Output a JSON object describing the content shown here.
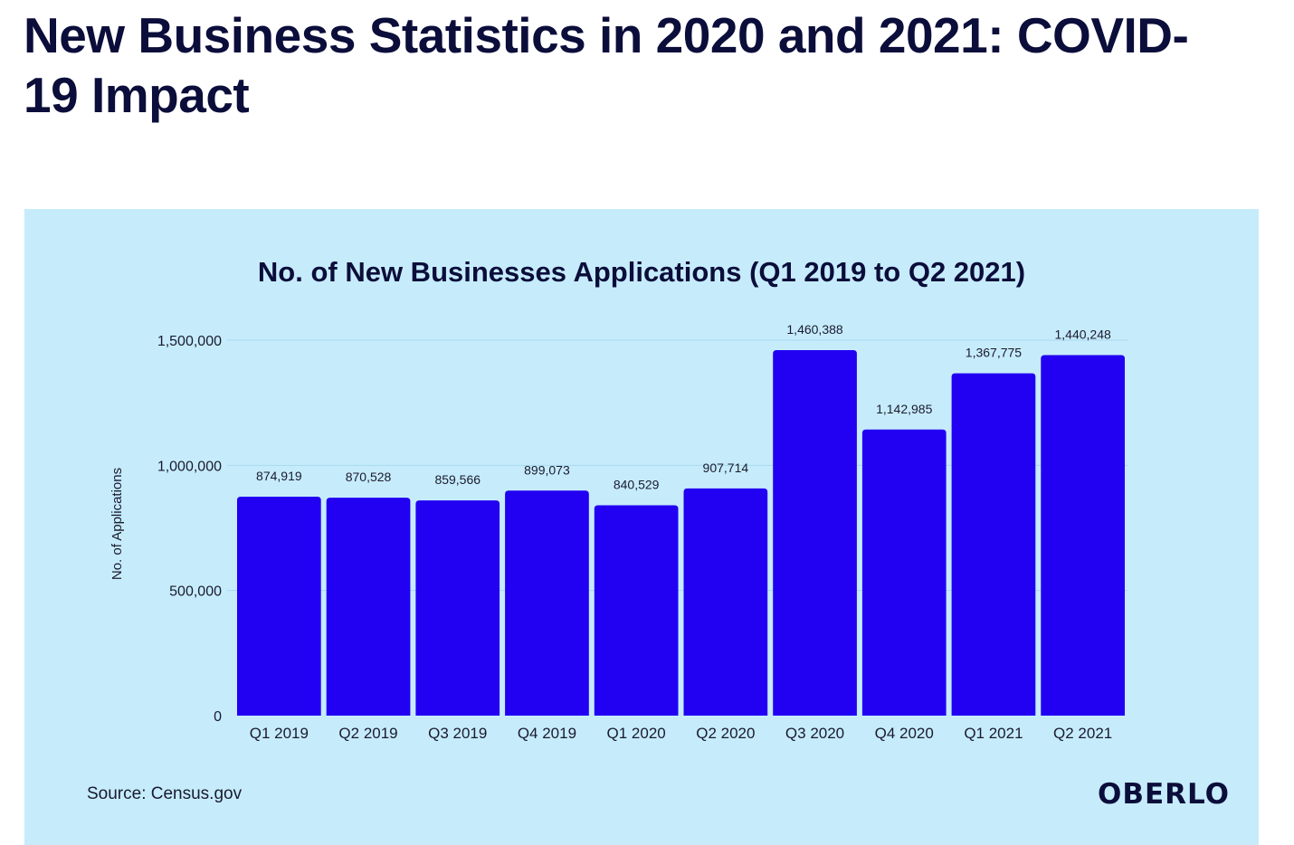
{
  "page": {
    "title": "New Business Statistics in 2020 and 2021: COVID-19 Impact"
  },
  "chart_data": {
    "type": "bar",
    "title": "No. of New Businesses Applications (Q1 2019 to Q2 2021)",
    "xlabel": "",
    "ylabel": "No. of Applications",
    "categories": [
      "Q1 2019",
      "Q2 2019",
      "Q3 2019",
      "Q4 2019",
      "Q1 2020",
      "Q2 2020",
      "Q3 2020",
      "Q4 2020",
      "Q1 2021",
      "Q2 2021"
    ],
    "values": [
      874919,
      870528,
      859566,
      899073,
      840529,
      907714,
      1460388,
      1142985,
      1367775,
      1440248
    ],
    "value_labels": [
      "874,919",
      "870,528",
      "859,566",
      "899,073",
      "840,529",
      "907,714",
      "1,460,388",
      "1,142,985",
      "1,367,775",
      "1,440,248"
    ],
    "ylim": [
      0,
      1500000
    ],
    "yticks": [
      0,
      500000,
      1000000,
      1500000
    ],
    "ytick_labels": [
      "0",
      "500,000",
      "1,000,000",
      "1,500,000"
    ],
    "grid": true,
    "legend": "none",
    "bar_color": "#2200f2",
    "background_color": "#c6ecfc"
  },
  "footer": {
    "source": "Source: Census.gov",
    "brand": "OBERLO"
  }
}
